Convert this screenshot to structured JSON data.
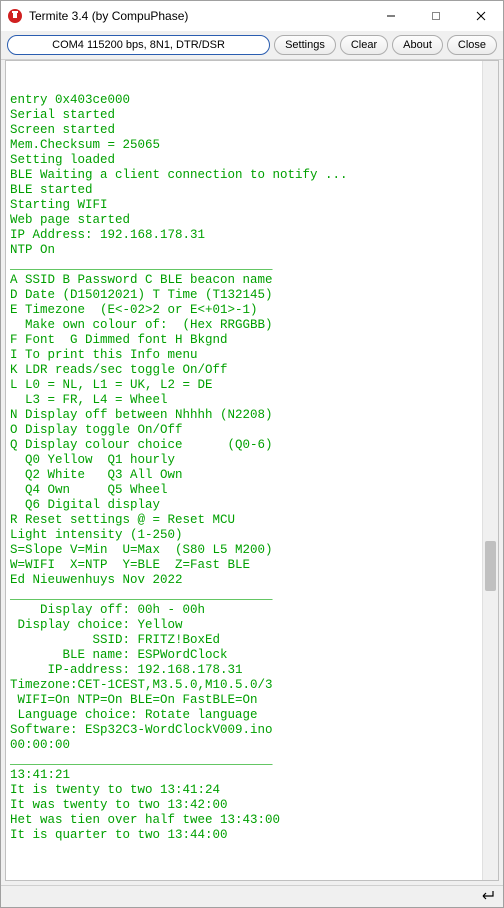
{
  "window": {
    "title": "Termite 3.4 (by CompuPhase)",
    "icon_color": "#d02020"
  },
  "toolbar": {
    "connection": "COM4 115200 bps, 8N1, DTR/DSR",
    "settings": "Settings",
    "clear": "Clear",
    "about": "About",
    "close": "Close"
  },
  "terminal": {
    "text_color": "#00a000",
    "bg_color": "#ffffff",
    "lines": [
      "entry 0x403ce000",
      "Serial started",
      "Screen started",
      "Mem.Checksum = 25065",
      "Setting loaded",
      "BLE Waiting a client connection to notify ...",
      "BLE started",
      "Starting WIFI",
      "Web page started",
      "IP Address: 192.168.178.31",
      "NTP On",
      "___________________________________",
      "A SSID B Password C BLE beacon name",
      "D Date (D15012021) T Time (T132145)",
      "E Timezone  (E<-02>2 or E<+01>-1)",
      "  Make own colour of:  (Hex RRGGBB)",
      "F Font  G Dimmed font H Bkgnd",
      "I To print this Info menu",
      "K LDR reads/sec toggle On/Off",
      "L L0 = NL, L1 = UK, L2 = DE",
      "  L3 = FR, L4 = Wheel",
      "N Display off between Nhhhh (N2208)",
      "O Display toggle On/Off",
      "Q Display colour choice      (Q0-6)",
      "  Q0 Yellow  Q1 hourly",
      "  Q2 White   Q3 All Own",
      "  Q4 Own     Q5 Wheel",
      "  Q6 Digital display",
      "R Reset settings @ = Reset MCU",
      "Light intensity (1-250)",
      "S=Slope V=Min  U=Max  (S80 L5 M200)",
      "W=WIFI  X=NTP  Y=BLE  Z=Fast BLE",
      "Ed Nieuwenhuys Nov 2022",
      "___________________________________",
      "    Display off: 00h - 00h",
      " Display choice: Yellow",
      "           SSID: FRITZ!BoxEd",
      "       BLE name: ESPWordClock",
      "     IP-address: 192.168.178.31",
      "Timezone:CET-1CEST,M3.5.0,M10.5.0/3",
      " WIFI=On NTP=On BLE=On FastBLE=On",
      " Language choice: Rotate language",
      "Software: ESp32C3-WordClockV009.ino",
      "00:00:00",
      "___________________________________",
      "13:41:21",
      "It is twenty to two 13:41:24",
      "It was twenty to two 13:42:00",
      "Het was tien over half twee 13:43:00",
      "It is quarter to two 13:44:00"
    ]
  }
}
